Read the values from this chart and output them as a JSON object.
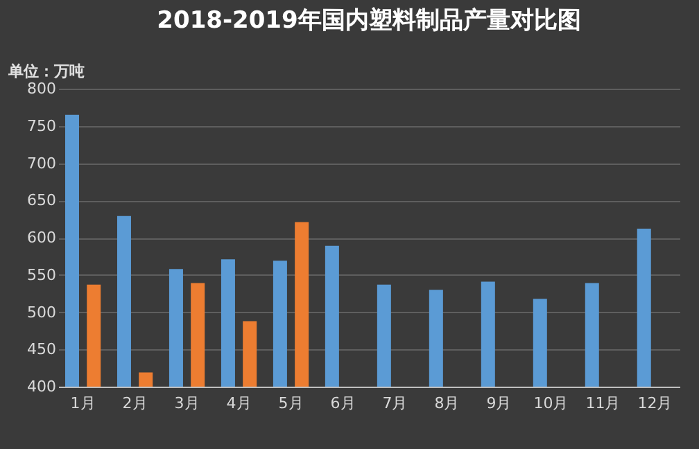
{
  "chart_data": {
    "type": "bar",
    "title": "2018-2019年国内塑料制品产量对比图",
    "annotations": [
      "单位：万吨"
    ],
    "categories": [
      "1月",
      "2月",
      "3月",
      "4月",
      "5月",
      "6月",
      "7月",
      "8月",
      "9月",
      "10月",
      "11月",
      "12月"
    ],
    "series": [
      {
        "color": "#5b9bd5",
        "values": [
          765,
          629,
          558,
          571,
          569,
          589,
          537,
          530,
          541,
          518,
          539,
          612
        ]
      },
      {
        "color": "#ed7d31",
        "values": [
          537,
          419,
          539,
          488,
          621,
          null,
          null,
          null,
          null,
          null,
          null,
          null
        ]
      }
    ],
    "ylim": [
      400,
      800
    ],
    "yticks": [
      400,
      450,
      500,
      550,
      600,
      650,
      700,
      750,
      800
    ],
    "grid": "y",
    "legend": false
  }
}
